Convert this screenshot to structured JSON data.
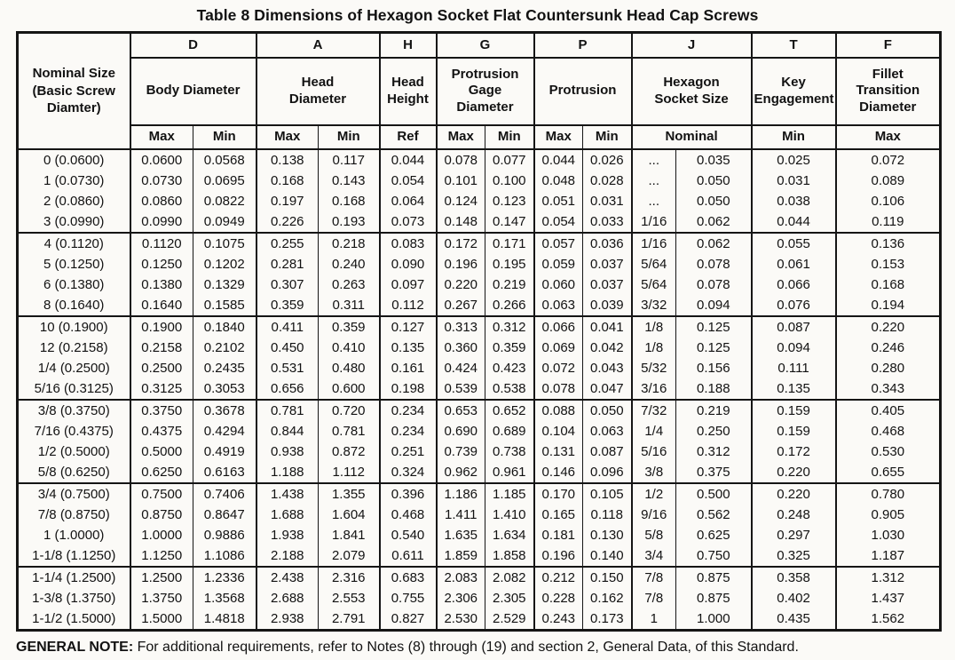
{
  "title": "Table 8 Dimensions of Hexagon Socket Flat Countersunk Head Cap Screws",
  "table": {
    "nominal_header": "Nominal Size (Basic Screw Diamter)",
    "columns": [
      {
        "letter": "D",
        "name": "Body Diameter",
        "subs": [
          "Max",
          "Min"
        ]
      },
      {
        "letter": "A",
        "name": "Head Diameter",
        "subs": [
          "Max",
          "Min"
        ]
      },
      {
        "letter": "H",
        "name": "Head Height",
        "subs": [
          "Ref"
        ]
      },
      {
        "letter": "G",
        "name": "Protrusion Gage Diameter",
        "subs": [
          "Max",
          "Min"
        ]
      },
      {
        "letter": "P",
        "name": "Protrusion",
        "subs": [
          "Max",
          "Min"
        ]
      },
      {
        "letter": "J",
        "name": "Hexagon Socket Size",
        "subs": [
          "Nominal"
        ]
      },
      {
        "letter": "T",
        "name": "Key Engagement",
        "subs": [
          "Min"
        ]
      },
      {
        "letter": "F",
        "name": "Fillet Transition Diameter",
        "subs": [
          "Max"
        ]
      }
    ],
    "groups": [
      {
        "rows": [
          {
            "cells": [
              "0 (0.0600)",
              "0.0600",
              "0.0568",
              "0.138",
              "0.117",
              "0.044",
              "0.078",
              "0.077",
              "0.044",
              "0.026",
              "...",
              "0.035",
              "0.025",
              "0.072"
            ]
          },
          {
            "cells": [
              "1 (0.0730)",
              "0.0730",
              "0.0695",
              "0.168",
              "0.143",
              "0.054",
              "0.101",
              "0.100",
              "0.048",
              "0.028",
              "...",
              "0.050",
              "0.031",
              "0.089"
            ]
          },
          {
            "cells": [
              "2 (0.0860)",
              "0.0860",
              "0.0822",
              "0.197",
              "0.168",
              "0.064",
              "0.124",
              "0.123",
              "0.051",
              "0.031",
              "...",
              "0.050",
              "0.038",
              "0.106"
            ]
          },
          {
            "cells": [
              "3 (0.0990)",
              "0.0990",
              "0.0949",
              "0.226",
              "0.193",
              "0.073",
              "0.148",
              "0.147",
              "0.054",
              "0.033",
              "1/16",
              "0.062",
              "0.044",
              "0.119"
            ]
          }
        ]
      },
      {
        "rows": [
          {
            "cells": [
              "4 (0.1120)",
              "0.1120",
              "0.1075",
              "0.255",
              "0.218",
              "0.083",
              "0.172",
              "0.171",
              "0.057",
              "0.036",
              "1/16",
              "0.062",
              "0.055",
              "0.136"
            ]
          },
          {
            "cells": [
              "5 (0.1250)",
              "0.1250",
              "0.1202",
              "0.281",
              "0.240",
              "0.090",
              "0.196",
              "0.195",
              "0.059",
              "0.037",
              "5/64",
              "0.078",
              "0.061",
              "0.153"
            ]
          },
          {
            "cells": [
              "6 (0.1380)",
              "0.1380",
              "0.1329",
              "0.307",
              "0.263",
              "0.097",
              "0.220",
              "0.219",
              "0.060",
              "0.037",
              "5/64",
              "0.078",
              "0.066",
              "0.168"
            ]
          },
          {
            "cells": [
              "8 (0.1640)",
              "0.1640",
              "0.1585",
              "0.359",
              "0.311",
              "0.112",
              "0.267",
              "0.266",
              "0.063",
              "0.039",
              "3/32",
              "0.094",
              "0.076",
              "0.194"
            ]
          }
        ]
      },
      {
        "rows": [
          {
            "cells": [
              "10 (0.1900)",
              "0.1900",
              "0.1840",
              "0.411",
              "0.359",
              "0.127",
              "0.313",
              "0.312",
              "0.066",
              "0.041",
              "1/8",
              "0.125",
              "0.087",
              "0.220"
            ]
          },
          {
            "cells": [
              "12 (0.2158)",
              "0.2158",
              "0.2102",
              "0.450",
              "0.410",
              "0.135",
              "0.360",
              "0.359",
              "0.069",
              "0.042",
              "1/8",
              "0.125",
              "0.094",
              "0.246"
            ]
          },
          {
            "cells": [
              "1/4 (0.2500)",
              "0.2500",
              "0.2435",
              "0.531",
              "0.480",
              "0.161",
              "0.424",
              "0.423",
              "0.072",
              "0.043",
              "5/32",
              "0.156",
              "0.111",
              "0.280"
            ]
          },
          {
            "cells": [
              "5/16 (0.3125)",
              "0.3125",
              "0.3053",
              "0.656",
              "0.600",
              "0.198",
              "0.539",
              "0.538",
              "0.078",
              "0.047",
              "3/16",
              "0.188",
              "0.135",
              "0.343"
            ]
          }
        ]
      },
      {
        "rows": [
          {
            "cells": [
              "3/8 (0.3750)",
              "0.3750",
              "0.3678",
              "0.781",
              "0.720",
              "0.234",
              "0.653",
              "0.652",
              "0.088",
              "0.050",
              "7/32",
              "0.219",
              "0.159",
              "0.405"
            ]
          },
          {
            "cells": [
              "7/16 (0.4375)",
              "0.4375",
              "0.4294",
              "0.844",
              "0.781",
              "0.234",
              "0.690",
              "0.689",
              "0.104",
              "0.063",
              "1/4",
              "0.250",
              "0.159",
              "0.468"
            ]
          },
          {
            "cells": [
              "1/2 (0.5000)",
              "0.5000",
              "0.4919",
              "0.938",
              "0.872",
              "0.251",
              "0.739",
              "0.738",
              "0.131",
              "0.087",
              "5/16",
              "0.312",
              "0.172",
              "0.530"
            ]
          },
          {
            "cells": [
              "5/8 (0.6250)",
              "0.6250",
              "0.6163",
              "1.188",
              "1.112",
              "0.324",
              "0.962",
              "0.961",
              "0.146",
              "0.096",
              "3/8",
              "0.375",
              "0.220",
              "0.655"
            ]
          }
        ]
      },
      {
        "rows": [
          {
            "cells": [
              "3/4 (0.7500)",
              "0.7500",
              "0.7406",
              "1.438",
              "1.355",
              "0.396",
              "1.186",
              "1.185",
              "0.170",
              "0.105",
              "1/2",
              "0.500",
              "0.220",
              "0.780"
            ]
          },
          {
            "cells": [
              "7/8 (0.8750)",
              "0.8750",
              "0.8647",
              "1.688",
              "1.604",
              "0.468",
              "1.411",
              "1.410",
              "0.165",
              "0.118",
              "9/16",
              "0.562",
              "0.248",
              "0.905"
            ]
          },
          {
            "cells": [
              "1 (1.0000)",
              "1.0000",
              "0.9886",
              "1.938",
              "1.841",
              "0.540",
              "1.635",
              "1.634",
              "0.181",
              "0.130",
              "5/8",
              "0.625",
              "0.297",
              "1.030"
            ]
          },
          {
            "cells": [
              "1-1/8 (1.1250)",
              "1.1250",
              "1.1086",
              "2.188",
              "2.079",
              "0.611",
              "1.859",
              "1.858",
              "0.196",
              "0.140",
              "3/4",
              "0.750",
              "0.325",
              "1.187"
            ]
          }
        ]
      },
      {
        "rows": [
          {
            "cells": [
              "1-1/4 (1.2500)",
              "1.2500",
              "1.2336",
              "2.438",
              "2.316",
              "0.683",
              "2.083",
              "2.082",
              "0.212",
              "0.150",
              "7/8",
              "0.875",
              "0.358",
              "1.312"
            ]
          },
          {
            "cells": [
              "1-3/8 (1.3750)",
              "1.3750",
              "1.3568",
              "2.688",
              "2.553",
              "0.755",
              "2.306",
              "2.305",
              "0.228",
              "0.162",
              "7/8",
              "0.875",
              "0.402",
              "1.437"
            ]
          },
          {
            "cells": [
              "1-1/2 (1.5000)",
              "1.5000",
              "1.4818",
              "2.938",
              "2.791",
              "0.827",
              "2.530",
              "2.529",
              "0.243",
              "0.173",
              "1",
              "1.000",
              "0.435",
              "1.562"
            ]
          }
        ]
      }
    ]
  },
  "general_note": {
    "label": "GENERAL NOTE:",
    "text": "For additional requirements, refer to Notes (8) through (19) and section 2, General Data, of this Standard."
  }
}
